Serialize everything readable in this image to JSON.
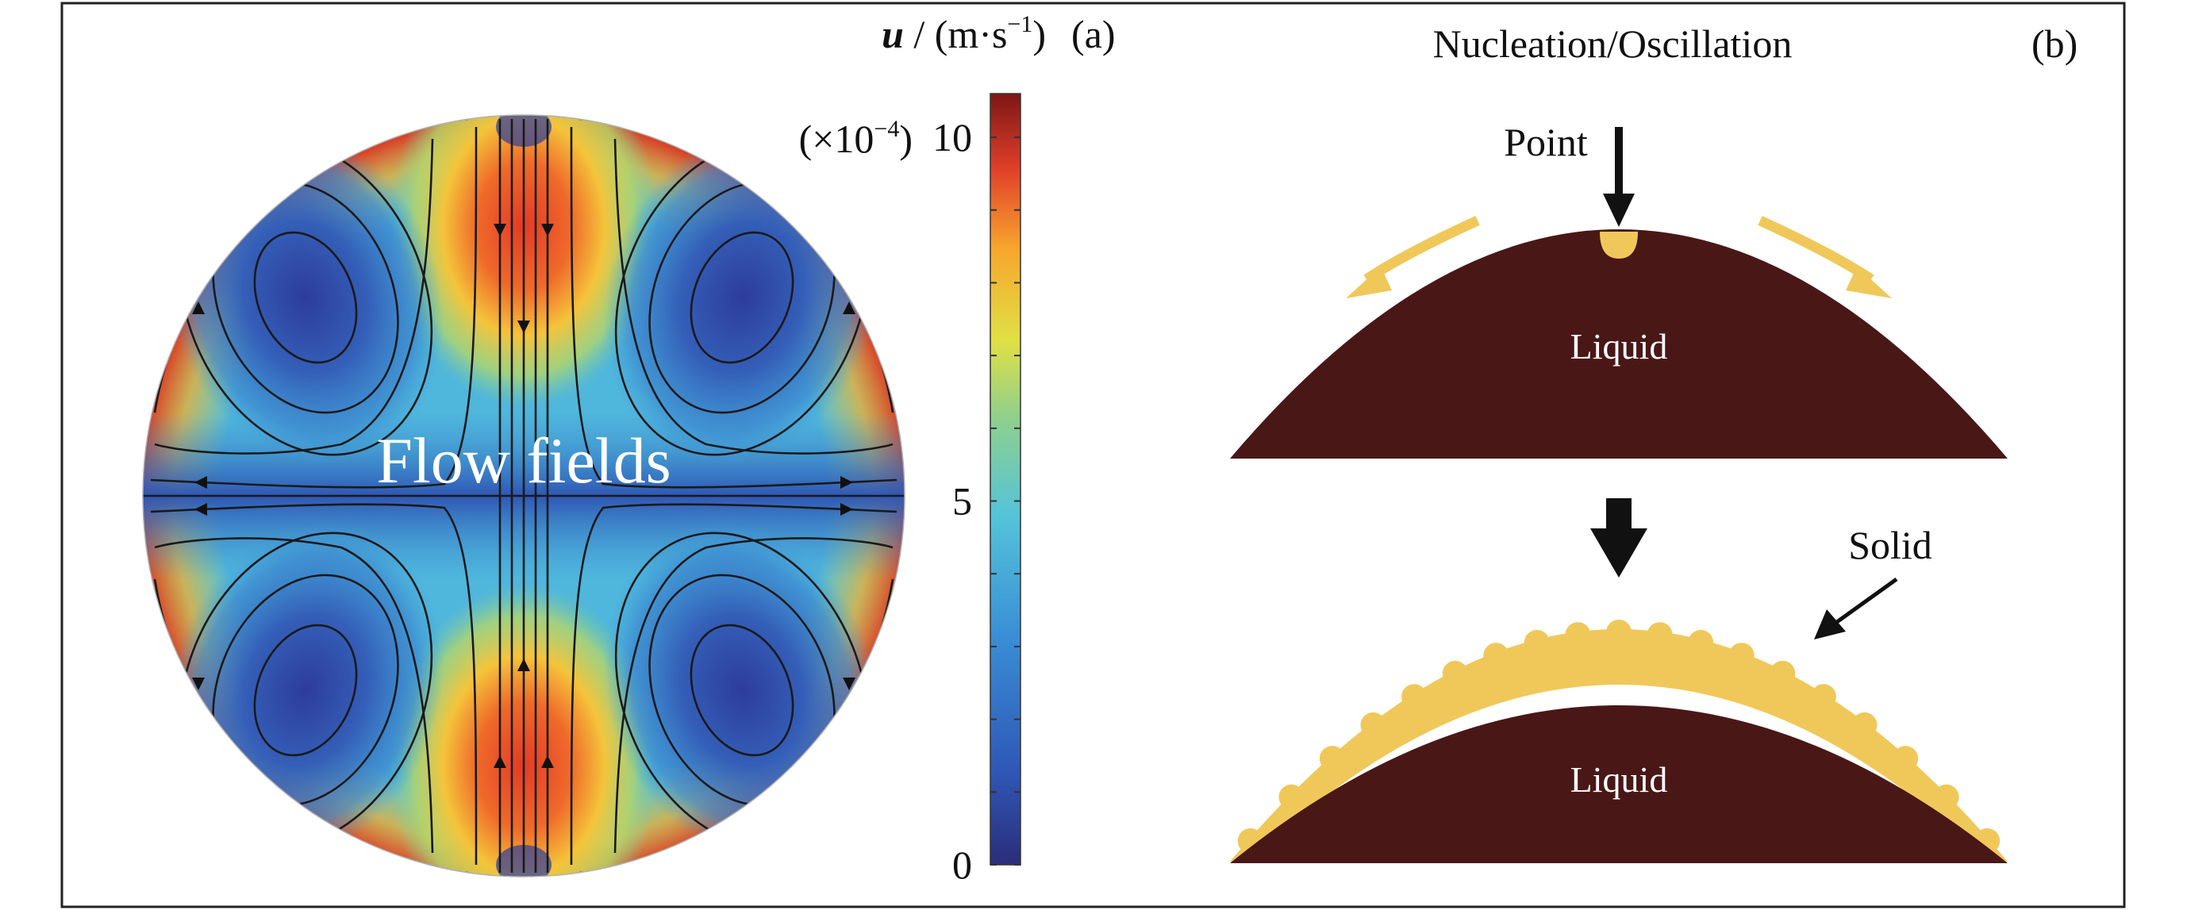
{
  "panel_a": {
    "label": "(a)",
    "overlay_text": "Flow fields",
    "colorbar": {
      "quantity": "u",
      "unit": " / (m·s",
      "unit_exp": "−1",
      "unit_close": ")",
      "multiplier_prefix": "(×10",
      "multiplier_exp": "−4",
      "multiplier_close": ")",
      "ticks": [
        "10",
        "5",
        "0"
      ],
      "tick_values": [
        10,
        5,
        0
      ],
      "range": [
        0,
        10.6
      ],
      "colormap": [
        "#2b2d7a",
        "#2f57b6",
        "#3a8fd6",
        "#53c3d9",
        "#8fd08c",
        "#e0e044",
        "#f7a52c",
        "#e2412a",
        "#7e1616"
      ]
    }
  },
  "panel_b": {
    "label": "(b)",
    "title": "Nucleation/Oscillation",
    "point_label": "Point",
    "liquid_top": "Liquid",
    "liquid_bottom": "Liquid",
    "solid_label": "Solid",
    "colors": {
      "liquid": "#4a1717",
      "solid": "#f0c85a"
    }
  }
}
